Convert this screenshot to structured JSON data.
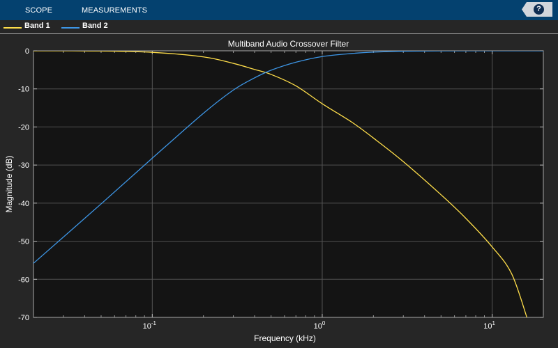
{
  "toolstrip": {
    "tabs": [
      {
        "label": "SCOPE"
      },
      {
        "label": "MEASUREMENTS"
      }
    ],
    "help_label": "?"
  },
  "legend": [
    {
      "label": "Band 1",
      "color": "#ffde4a"
    },
    {
      "label": "Band 2",
      "color": "#3d96e6"
    }
  ],
  "chart_data": {
    "type": "line",
    "title": "Multiband Audio Crossover Filter",
    "xlabel": "Frequency (kHz)",
    "ylabel": "Magnitude (dB)",
    "xscale": "log",
    "xlim": [
      0.02,
      20
    ],
    "ylim": [
      -70,
      0
    ],
    "grid": true,
    "yticks": [
      "0",
      "-10",
      "-20",
      "-30",
      "-40",
      "-50",
      "-60",
      "-70"
    ],
    "xticks": [
      {
        "base": "10",
        "exp": "-1"
      },
      {
        "base": "10",
        "exp": "0"
      },
      {
        "base": "10",
        "exp": "1"
      }
    ],
    "series": [
      {
        "name": "Band 1",
        "color": "#ffde4a",
        "x": [
          0.02,
          0.05,
          0.1,
          0.2,
          0.3,
          0.4,
          0.5,
          0.7,
          1.0,
          1.5,
          2.0,
          3.0,
          5.0,
          7.0,
          10.0,
          13.0,
          16.0
        ],
        "y": [
          0,
          -0.05,
          -0.4,
          -1.6,
          -3.3,
          -4.9,
          -6.2,
          -9.2,
          -13.9,
          -18.8,
          -22.9,
          -29.1,
          -37.8,
          -44.0,
          -51.5,
          -58.5,
          -70.0
        ]
      },
      {
        "name": "Band 2",
        "color": "#3d96e6",
        "x": [
          0.02,
          0.05,
          0.1,
          0.2,
          0.3,
          0.4,
          0.5,
          0.7,
          1.0,
          1.5,
          2.0,
          3.0,
          5.0,
          10.0,
          20.0
        ],
        "y": [
          -55.8,
          -40.2,
          -28.2,
          -16.4,
          -10.3,
          -7.1,
          -5.1,
          -3.0,
          -1.5,
          -0.7,
          -0.35,
          -0.1,
          -0.02,
          0,
          0
        ]
      }
    ]
  }
}
